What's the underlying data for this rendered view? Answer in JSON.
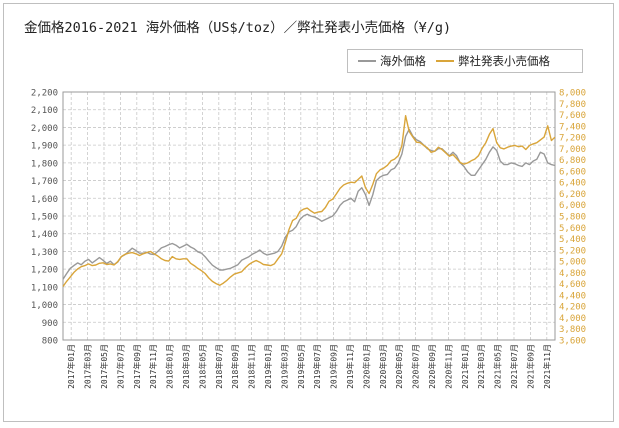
{
  "chart_data": {
    "type": "line",
    "title": "金価格2016-2021 海外価格（US$/toz）／弊社発表小売価格（¥/g)",
    "series": [
      {
        "name": "海外価格",
        "axis": "left",
        "color": "#999999",
        "values": [
          1143,
          1175,
          1205,
          1220,
          1235,
          1225,
          1245,
          1255,
          1235,
          1250,
          1265,
          1250,
          1232,
          1245,
          1225,
          1240,
          1270,
          1282,
          1300,
          1318,
          1305,
          1290,
          1290,
          1295,
          1285,
          1282,
          1300,
          1320,
          1328,
          1338,
          1345,
          1335,
          1320,
          1330,
          1340,
          1325,
          1315,
          1298,
          1290,
          1270,
          1245,
          1222,
          1208,
          1195,
          1195,
          1200,
          1205,
          1215,
          1225,
          1250,
          1260,
          1270,
          1285,
          1295,
          1308,
          1290,
          1280,
          1285,
          1290,
          1300,
          1330,
          1380,
          1410,
          1420,
          1440,
          1480,
          1500,
          1510,
          1500,
          1495,
          1485,
          1470,
          1480,
          1490,
          1500,
          1525,
          1560,
          1580,
          1590,
          1600,
          1580,
          1640,
          1660,
          1620,
          1560,
          1620,
          1700,
          1720,
          1730,
          1735,
          1760,
          1770,
          1800,
          1850,
          1950,
          1990,
          1950,
          1930,
          1920,
          1900,
          1880,
          1870,
          1865,
          1880,
          1880,
          1860,
          1840,
          1860,
          1840,
          1800,
          1780,
          1750,
          1730,
          1730,
          1760,
          1790,
          1820,
          1860,
          1890,
          1870,
          1810,
          1790,
          1790,
          1800,
          1795,
          1785,
          1780,
          1800,
          1790,
          1810,
          1820,
          1860,
          1850,
          1800,
          1790,
          1785
        ]
      },
      {
        "name": "弊社発表小売価格",
        "axis": "right",
        "color": "#d9a53a",
        "values": [
          4550,
          4640,
          4720,
          4800,
          4860,
          4900,
          4920,
          4950,
          4920,
          4930,
          4960,
          4970,
          4940,
          4950,
          4930,
          4990,
          5080,
          5120,
          5140,
          5150,
          5130,
          5100,
          5130,
          5150,
          5170,
          5130,
          5090,
          5040,
          5010,
          5000,
          5080,
          5040,
          5030,
          5040,
          5040,
          4960,
          4920,
          4870,
          4830,
          4780,
          4700,
          4640,
          4600,
          4570,
          4610,
          4660,
          4720,
          4770,
          4790,
          4810,
          4880,
          4940,
          4980,
          5010,
          4980,
          4940,
          4930,
          4920,
          4950,
          5040,
          5130,
          5330,
          5560,
          5720,
          5760,
          5880,
          5920,
          5940,
          5890,
          5850,
          5870,
          5880,
          5950,
          6060,
          6100,
          6190,
          6290,
          6350,
          6380,
          6400,
          6390,
          6450,
          6510,
          6300,
          6200,
          6360,
          6550,
          6620,
          6650,
          6700,
          6780,
          6810,
          6870,
          7050,
          7580,
          7300,
          7200,
          7110,
          7100,
          7050,
          7010,
          6930,
          6950,
          7020,
          6980,
          6920,
          6860,
          6890,
          6820,
          6750,
          6720,
          6740,
          6780,
          6810,
          6870,
          7000,
          7100,
          7250,
          7350,
          7100,
          7010,
          6990,
          7020,
          7040,
          7050,
          7030,
          7040,
          6980,
          7050,
          7080,
          7100,
          7150,
          7200,
          7400,
          7140,
          7200
        ]
      }
    ],
    "x_labels": [
      "2017年01月",
      "2017年03月",
      "2017年05月",
      "2017年07月",
      "2017年09月",
      "2017年11月",
      "2018年01月",
      "2018年03月",
      "2018年05月",
      "2018年07月",
      "2018年09月",
      "2018年11月",
      "2019年01月",
      "2019年03月",
      "2019年05月",
      "2019年07月",
      "2019年09月",
      "2019年11月",
      "2020年01月",
      "2020年03月",
      "2020年05月",
      "2020年07月",
      "2020年09月",
      "2020年11月",
      "2021年01月",
      "2021年03月",
      "2021年05月",
      "2021年07月",
      "2021年09月",
      "2021年11月"
    ],
    "y_left": {
      "ylim": [
        800,
        2200
      ],
      "ticks": [
        "800",
        "900",
        "1,000",
        "1,100",
        "1,200",
        "1,300",
        "1,400",
        "1,500",
        "1,600",
        "1,700",
        "1,800",
        "1,900",
        "2,000",
        "2,100",
        "2,200"
      ]
    },
    "y_right": {
      "ylim": [
        3600,
        8000
      ],
      "ticks": [
        "3,600",
        "3,800",
        "4,000",
        "4,200",
        "4,400",
        "4,600",
        "4,800",
        "5,000",
        "5,200",
        "5,400",
        "5,600",
        "5,800",
        "6,000",
        "6,200",
        "6,400",
        "6,600",
        "6,800",
        "7,000",
        "7,200",
        "7,400",
        "7,600",
        "7,800",
        "8,000"
      ]
    },
    "grid": true,
    "legend_position": "top-right"
  },
  "colors": {
    "left_axis_text": "#555555",
    "right_axis_text": "#d9a53a",
    "grid": "#c8c8c8"
  }
}
